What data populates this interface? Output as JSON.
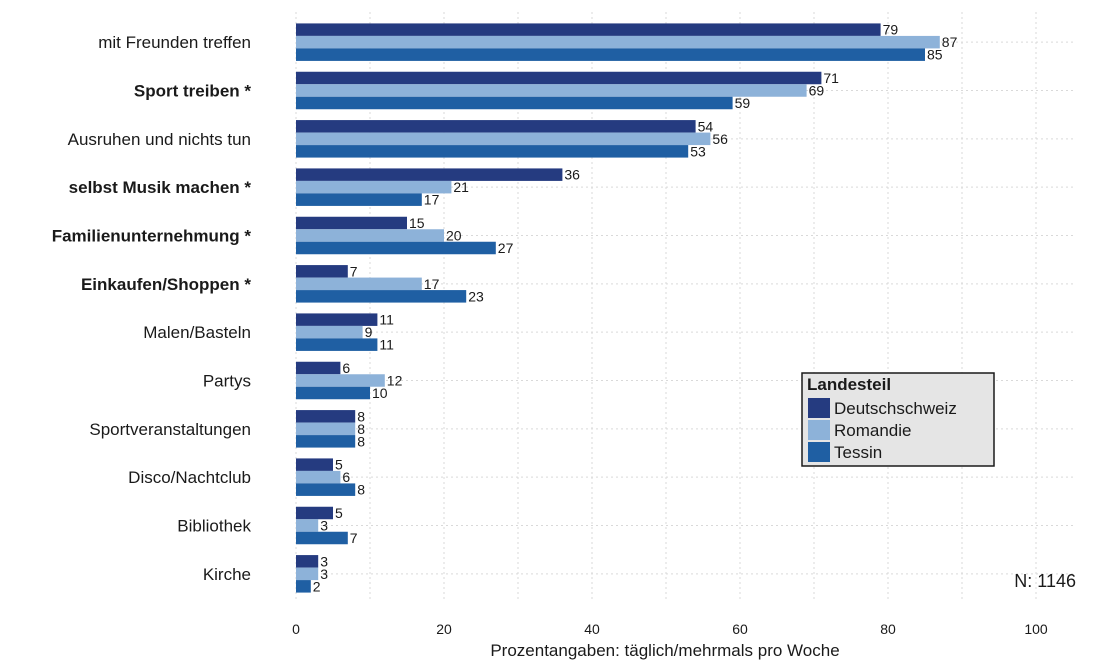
{
  "chart_data": {
    "type": "bar",
    "orientation": "horizontal",
    "categories": [
      {
        "label": "mit Freunden treffen",
        "bold": false
      },
      {
        "label": "Sport treiben *",
        "bold": true
      },
      {
        "label": "Ausruhen und nichts tun",
        "bold": false
      },
      {
        "label": "selbst Musik machen *",
        "bold": true
      },
      {
        "label": "Familienunternehmung *",
        "bold": true
      },
      {
        "label": "Einkaufen/Shoppen *",
        "bold": true
      },
      {
        "label": "Malen/Basteln",
        "bold": false
      },
      {
        "label": "Partys",
        "bold": false
      },
      {
        "label": "Sportveranstaltungen",
        "bold": false
      },
      {
        "label": "Disco/Nachtclub",
        "bold": false
      },
      {
        "label": "Bibliothek",
        "bold": false
      },
      {
        "label": "Kirche",
        "bold": false
      }
    ],
    "series": [
      {
        "name": "Deutschschweiz",
        "color": "#253b80",
        "values": [
          79,
          71,
          54,
          36,
          15,
          7,
          11,
          6,
          8,
          5,
          5,
          3
        ]
      },
      {
        "name": "Romandie",
        "color": "#8db2d9",
        "values": [
          87,
          69,
          56,
          21,
          20,
          17,
          9,
          12,
          8,
          6,
          3,
          3
        ]
      },
      {
        "name": "Tessin",
        "color": "#1f5fa3",
        "values": [
          85,
          59,
          53,
          17,
          27,
          23,
          11,
          10,
          8,
          8,
          7,
          2
        ]
      }
    ],
    "xlabel": "Prozentangaben: täglich/mehrmals pro Woche",
    "xlim": [
      0,
      100
    ],
    "xticks": [
      0,
      20,
      40,
      60,
      80,
      100
    ],
    "grid": true,
    "legend": {
      "title": "Landesteil",
      "position": "bottom-right"
    },
    "annotation": "N: 1146"
  }
}
